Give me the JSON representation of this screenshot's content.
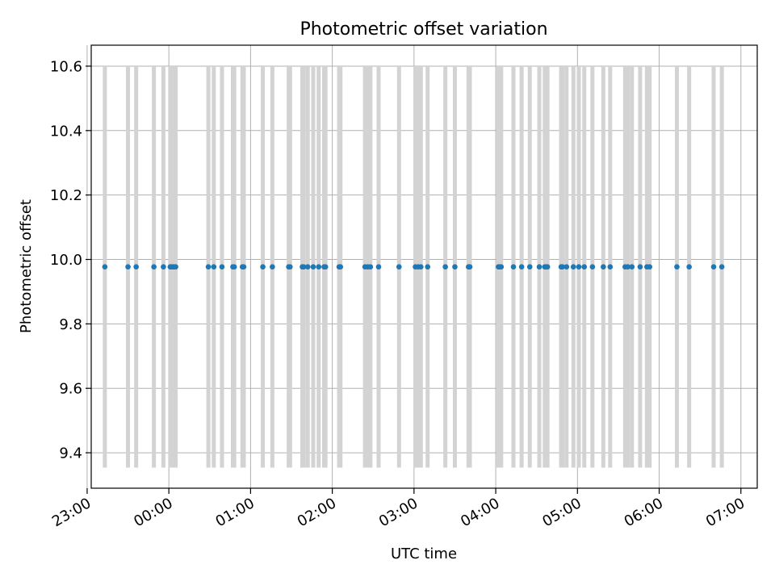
{
  "chart_data": {
    "type": "scatter",
    "title": "Photometric offset variation",
    "xlabel": "UTC time",
    "ylabel": "Photometric offset",
    "x_unit": "minutes",
    "x_range": [
      -57,
      432
    ],
    "ylim": [
      9.29,
      10.665
    ],
    "grid": true,
    "colors": {
      "points": "#1f77b4",
      "errorbars": "#d3d3d3",
      "grid": "#b0b0b0"
    },
    "x_ticks": [
      {
        "value": -60,
        "label": "23:00"
      },
      {
        "value": 0,
        "label": "00:00"
      },
      {
        "value": 60,
        "label": "01:00"
      },
      {
        "value": 120,
        "label": "02:00"
      },
      {
        "value": 180,
        "label": "03:00"
      },
      {
        "value": 240,
        "label": "04:00"
      },
      {
        "value": 300,
        "label": "05:00"
      },
      {
        "value": 360,
        "label": "06:00"
      },
      {
        "value": 420,
        "label": "07:00"
      }
    ],
    "y_ticks": [
      {
        "value": 9.4,
        "label": "9.4"
      },
      {
        "value": 9.6,
        "label": "9.6"
      },
      {
        "value": 9.8,
        "label": "9.8"
      },
      {
        "value": 10.0,
        "label": "10.0"
      },
      {
        "value": 10.2,
        "label": "10.2"
      },
      {
        "value": 10.4,
        "label": "10.4"
      },
      {
        "value": 10.6,
        "label": "10.6"
      }
    ],
    "series": [
      {
        "y": 9.977,
        "yerr": 0.623,
        "x": [
          -47,
          -30,
          -24,
          -11,
          -4,
          1,
          2,
          3,
          4,
          5,
          29,
          33,
          39,
          47,
          48,
          54,
          55,
          69,
          76,
          88,
          89,
          98,
          99,
          102,
          106,
          110,
          114,
          115,
          125,
          126,
          144,
          146,
          148,
          154,
          169,
          181,
          183,
          185,
          190,
          203,
          210,
          220,
          221,
          242,
          243,
          244,
          253,
          259,
          265,
          272,
          276,
          277,
          278,
          288,
          289,
          292,
          297,
          301,
          305,
          311,
          319,
          324,
          335,
          337,
          340,
          346,
          351,
          353,
          373,
          382,
          400,
          406
        ]
      }
    ]
  }
}
